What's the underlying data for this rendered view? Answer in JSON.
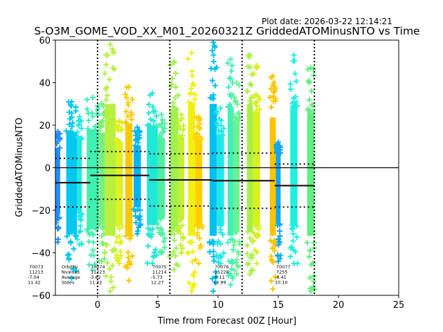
{
  "chart_data": {
    "type": "scatter",
    "title": "S-O3M_GOME_VOD_XX_M01_20260321Z GriddedATOMinusNTO vs Time",
    "plot_date": "Plot date: 2026-03-22 12:14:21",
    "xlabel": "Time from Forecast 00Z [Hour]",
    "ylabel": "GriddedATOMinusNTO",
    "xlim": [
      -3.5,
      25
    ],
    "ylim": [
      -60,
      60
    ],
    "xticks": [
      0,
      5,
      10,
      15,
      20,
      25
    ],
    "yticks": [
      -60,
      -40,
      -20,
      0,
      20,
      40,
      60
    ],
    "xtick_labels": [
      "0",
      "5",
      "10",
      "15",
      "20",
      "25"
    ],
    "ytick_labels": [
      "−60",
      "−40",
      "−20",
      "0",
      "20",
      "40",
      "60"
    ],
    "zero_line": 0,
    "forecast_lines": [
      0,
      6,
      12,
      18
    ],
    "stats_labels": [
      "OrbitNr",
      "Nvalues",
      "Average",
      "Stdev"
    ],
    "orbits": [
      {
        "orbit": "70073",
        "nvalues": "11213",
        "average": "-7.04",
        "stdev": "11.42",
        "x_start": -3.5,
        "x_end": -0.6,
        "mean": -7.04,
        "upper": 4.38,
        "lower": -18.46
      },
      {
        "orbit": "70074",
        "nvalues": "11223",
        "average": "-3.62",
        "stdev": "11.22",
        "x_start": -0.6,
        "x_end": 4.3,
        "mean": -3.62,
        "upper": 7.6,
        "lower": -14.84
      },
      {
        "orbit": "70075",
        "nvalues": "11214",
        "average": "-5.73",
        "stdev": "12.27",
        "x_start": 4.3,
        "x_end": 9.5,
        "mean": -5.73,
        "upper": 6.54,
        "lower": -18.0
      },
      {
        "orbit": "70076",
        "nvalues": "11228",
        "average": "-6.11",
        "stdev": "12.99",
        "x_start": 9.5,
        "x_end": 14.7,
        "mean": -6.11,
        "upper": 6.88,
        "lower": -19.1
      },
      {
        "orbit": "70077",
        "nvalues": "7255",
        "average": "-8.41",
        "stdev": "10.10",
        "x_start": 14.7,
        "x_end": 18.0,
        "mean": -8.41,
        "upper": 1.69,
        "lower": -18.51
      }
    ],
    "swaths": [
      {
        "x0": -3.5,
        "x1": -3.1,
        "ymin": -35,
        "ymax": 17,
        "color": "#1e90ff"
      },
      {
        "x0": -2.6,
        "x1": -1.7,
        "ymin": -52,
        "ymax": 31,
        "color": "#00c8f0"
      },
      {
        "x0": -1.7,
        "x1": -1.3,
        "ymin": -36,
        "ymax": 24,
        "color": "#22e8e0"
      },
      {
        "x0": -0.9,
        "x1": 0.1,
        "ymin": -48,
        "ymax": 33,
        "color": "#40f0b0"
      },
      {
        "x0": 0.1,
        "x1": 0.6,
        "ymin": -44,
        "ymax": 30,
        "color": "#78f080"
      },
      {
        "x0": 0.6,
        "x1": 1.5,
        "ymin": -58,
        "ymax": 58,
        "color": "#b8f040"
      },
      {
        "x0": 1.5,
        "x1": 2.1,
        "ymin": -45,
        "ymax": 22,
        "color": "#e0f020"
      },
      {
        "x0": 2.3,
        "x1": 2.9,
        "ymin": -53,
        "ymax": 38,
        "color": "#ffc800"
      },
      {
        "x0": 3.0,
        "x1": 3.6,
        "ymin": -31,
        "ymax": 19,
        "color": "#00b4f0"
      },
      {
        "x0": 4.1,
        "x1": 5.0,
        "ymin": -45,
        "ymax": 35,
        "color": "#1ee8d8"
      },
      {
        "x0": 5.0,
        "x1": 5.6,
        "ymin": -40,
        "ymax": 25,
        "color": "#50f0a0"
      },
      {
        "x0": 6.0,
        "x1": 6.7,
        "ymin": -48,
        "ymax": 50,
        "color": "#a0f050"
      },
      {
        "x0": 6.7,
        "x1": 7.2,
        "ymin": -40,
        "ymax": 25,
        "color": "#c8f030"
      },
      {
        "x0": 7.5,
        "x1": 8.1,
        "ymin": -58,
        "ymax": 54,
        "color": "#f0f010"
      },
      {
        "x0": 8.1,
        "x1": 8.7,
        "ymin": -45,
        "ymax": 24,
        "color": "#ffd000"
      },
      {
        "x0": 9.3,
        "x1": 9.9,
        "ymin": -58,
        "ymax": 59,
        "color": "#00c0f0"
      },
      {
        "x0": 9.9,
        "x1": 10.5,
        "ymin": -45,
        "ymax": 28,
        "color": "#20e8e8"
      },
      {
        "x0": 10.8,
        "x1": 11.3,
        "ymin": -55,
        "ymax": 51,
        "color": "#40f0b8"
      },
      {
        "x0": 11.3,
        "x1": 11.8,
        "ymin": -50,
        "ymax": 40,
        "color": "#70f090"
      },
      {
        "x0": 12.4,
        "x1": 12.9,
        "ymin": -50,
        "ymax": 53,
        "color": "#a8f048"
      },
      {
        "x0": 12.9,
        "x1": 13.5,
        "ymin": -45,
        "ymax": 48,
        "color": "#d8f020"
      },
      {
        "x0": 14.3,
        "x1": 14.8,
        "ymin": -57,
        "ymax": 43,
        "color": "#ffc400"
      },
      {
        "x0": 14.8,
        "x1": 15.2,
        "ymin": -44,
        "ymax": 12,
        "color": "#10a8f0"
      },
      {
        "x0": 16.0,
        "x1": 16.6,
        "ymin": -45,
        "ymax": 53,
        "color": "#20f0e0"
      },
      {
        "x0": 17.4,
        "x1": 18.0,
        "ymin": -58,
        "ymax": 47,
        "color": "#60f080"
      }
    ]
  }
}
